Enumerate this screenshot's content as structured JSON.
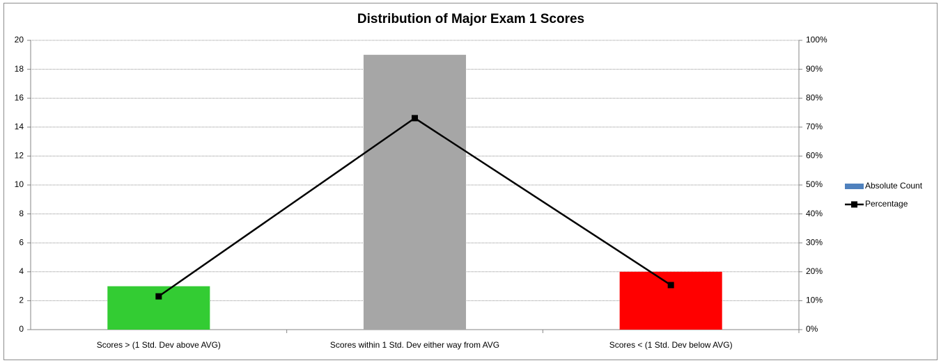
{
  "chart_data": {
    "type": "bar",
    "title": "Distribution of Major Exam 1 Scores",
    "categories": [
      "Scores > (1 Std. Dev above AVG)",
      "Scores within 1 Std. Dev either way from AVG",
      "Scores < (1 Std. Dev below AVG)"
    ],
    "series": [
      {
        "name": "Absolute Count",
        "type": "bar",
        "color": "#4f81bd",
        "colors": [
          "#33cc33",
          "#a6a6a6",
          "#ff0000"
        ],
        "values": [
          3,
          19,
          4
        ]
      },
      {
        "name": "Percentage",
        "type": "line",
        "axis": "y2",
        "color": "#000000",
        "values": [
          11.5,
          73.1,
          15.4
        ]
      }
    ],
    "ylim": [
      0,
      20
    ],
    "yticks": [
      0,
      2,
      4,
      6,
      8,
      10,
      12,
      14,
      16,
      18,
      20
    ],
    "y2lim": [
      0,
      100
    ],
    "y2ticks": [
      {
        "value": 0,
        "label": "0%"
      },
      {
        "value": 10,
        "label": "10%"
      },
      {
        "value": 20,
        "label": "20%"
      },
      {
        "value": 30,
        "label": "30%"
      },
      {
        "value": 40,
        "label": "40%"
      },
      {
        "value": 50,
        "label": "50%"
      },
      {
        "value": 60,
        "label": "60%"
      },
      {
        "value": 70,
        "label": "70%"
      },
      {
        "value": 80,
        "label": "80%"
      },
      {
        "value": 90,
        "label": "90%"
      },
      {
        "value": 100,
        "label": "100%"
      }
    ],
    "grid": true,
    "legend": "right"
  }
}
